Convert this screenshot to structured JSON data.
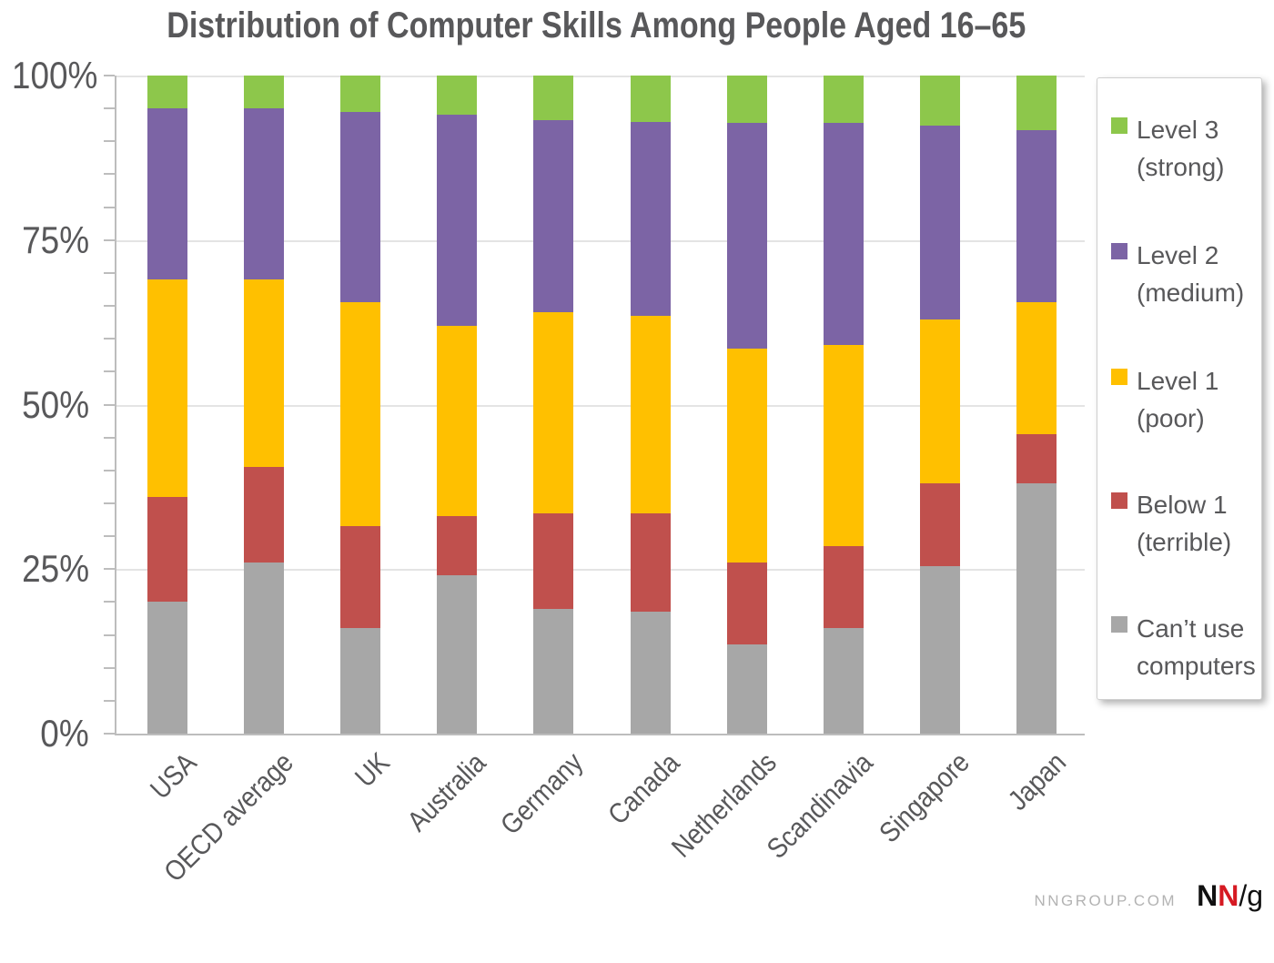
{
  "title": "Distribution of Computer Skills Among People Aged 16–65",
  "colors": {
    "level3_green": "#8DC74B",
    "level2_purple": "#7C64A5",
    "level1_yellow": "#FFC000",
    "below1_red": "#C0504D",
    "cant_use_gray": "#A7A7A7",
    "text_gray": "#58585A",
    "axis_gray": "#BDBDBD",
    "grid_gray": "#E4E4E4",
    "logo_red": "#D61A22"
  },
  "y_axis": {
    "tick_labels": [
      "100%",
      "75%",
      "50%",
      "25%",
      "0%"
    ],
    "major_ticks": [
      0,
      25,
      50,
      75,
      100
    ],
    "minor_tick_step": 5
  },
  "legend": {
    "items": [
      {
        "line1": "Level 3",
        "line2": "(strong)",
        "color": "#8DC74B"
      },
      {
        "line1": "Level 2",
        "line2": "(medium)",
        "color": "#7C64A5"
      },
      {
        "line1": "Level 1",
        "line2": "(poor)",
        "color": "#FFC000"
      },
      {
        "line1": "Below 1",
        "line2": "(terrible)",
        "color": "#C0504D"
      },
      {
        "line1": "Can’t use",
        "line2": "computers",
        "color": "#A7A7A7"
      }
    ]
  },
  "footer": {
    "site": "NNGROUP.COM",
    "logo_n1": "N",
    "logo_n2": "N",
    "logo_slash": "/",
    "logo_g": "g"
  },
  "chart_data": {
    "type": "bar",
    "stacked": true,
    "title": "Distribution of Computer Skills Among People Aged 16–65",
    "categories": [
      "USA",
      "OECD average",
      "UK",
      "Australia",
      "Germany",
      "Canada",
      "Netherlands",
      "Scandinavia",
      "Singapore",
      "Japan"
    ],
    "series": [
      {
        "name": "Can’t use computers",
        "color": "#A7A7A7",
        "values": [
          20,
          26,
          16,
          24,
          19,
          18.5,
          13.5,
          16,
          25.5,
          38
        ]
      },
      {
        "name": "Below 1 (terrible)",
        "color": "#C0504D",
        "values": [
          16,
          14.5,
          15.5,
          9,
          14.5,
          15,
          12.5,
          12.5,
          12.5,
          7.5
        ]
      },
      {
        "name": "Level 1 (poor)",
        "color": "#FFC000",
        "values": [
          33,
          28.5,
          34,
          29,
          30.5,
          30,
          32.5,
          30.5,
          25,
          20
        ]
      },
      {
        "name": "Level 2 (medium)",
        "color": "#7C64A5",
        "values": [
          26,
          26,
          29,
          32,
          29.2,
          29.5,
          34.3,
          33.8,
          29.4,
          26.2
        ]
      },
      {
        "name": "Level 3 (strong)",
        "color": "#8DC74B",
        "values": [
          5,
          5,
          5.5,
          6,
          6.8,
          7,
          7.2,
          7.2,
          7.6,
          8.3
        ]
      }
    ],
    "xlabel": "",
    "ylabel": "",
    "ylim": [
      0,
      100
    ],
    "ytick_format": "percent",
    "grid": "horizontal",
    "legend_position": "right"
  }
}
